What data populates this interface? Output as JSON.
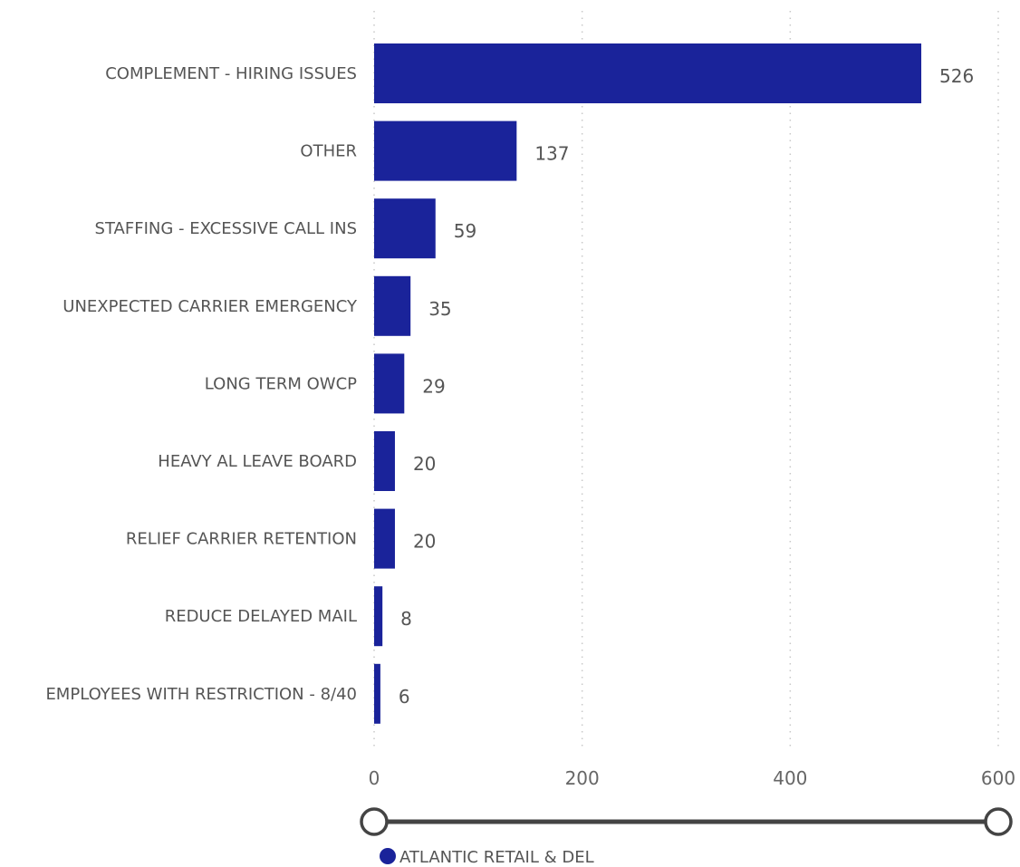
{
  "chart_data": {
    "type": "bar",
    "orientation": "horizontal",
    "categories": [
      "COMPLEMENT - HIRING ISSUES",
      "OTHER",
      "STAFFING - EXCESSIVE CALL INS",
      "UNEXPECTED CARRIER EMERGENCY",
      "LONG TERM OWCP",
      "HEAVY AL LEAVE BOARD",
      "RELIEF CARRIER RETENTION",
      "REDUCE DELAYED MAIL",
      "EMPLOYEES WITH RESTRICTION - 8/40"
    ],
    "series": [
      {
        "name": "ATLANTIC RETAIL & DEL",
        "values": [
          526,
          137,
          59,
          35,
          29,
          20,
          20,
          8,
          6
        ],
        "color": "#1A239A"
      }
    ],
    "data_labels": [
      "526",
      "137",
      "59",
      "35",
      "29",
      "20",
      "20",
      "8",
      "6"
    ],
    "x_ticks": [
      0,
      200,
      400,
      600
    ],
    "x_tick_labels": [
      "0",
      "200",
      "400",
      "600"
    ],
    "xlim": [
      0,
      600
    ],
    "grid": true,
    "legend_position": "bottom-left"
  },
  "zoom_slider": {
    "range_start": 0,
    "range_end": 1,
    "color": "#444444"
  },
  "legend": {
    "label": "ATLANTIC RETAIL & DEL",
    "marker_color": "#1A239A"
  }
}
